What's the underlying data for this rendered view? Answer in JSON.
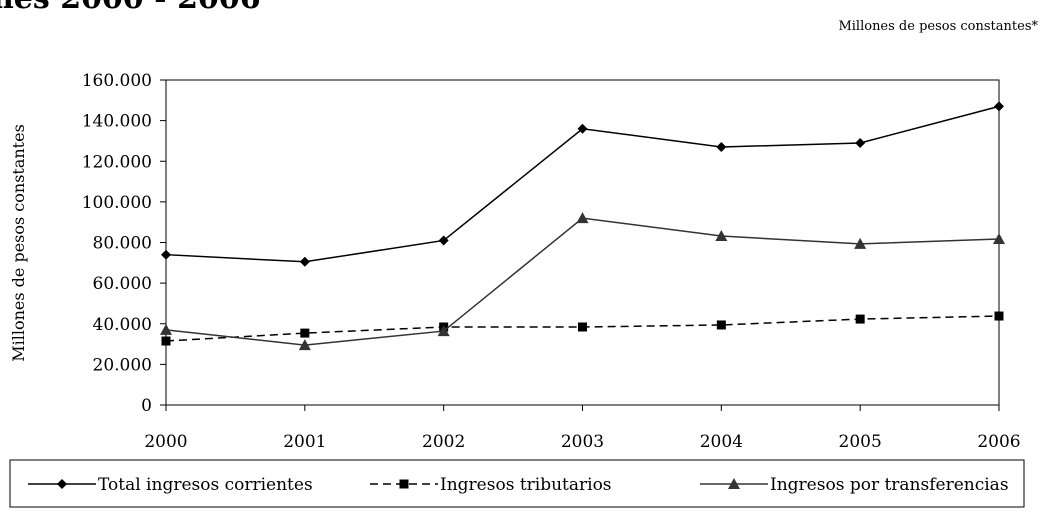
{
  "chart_data": {
    "type": "line",
    "title": "nes 2000 - 2006",
    "subtitle": "Millones de pesos constantes*",
    "y_label": "Millones de pesos constantes",
    "categories": [
      "2000",
      "2001",
      "2002",
      "2003",
      "2004",
      "2005",
      "2006"
    ],
    "series": [
      {
        "name": "Total ingresos corrientes",
        "color": "#000000",
        "marker": "diamond",
        "dash": "solid",
        "values": [
          74000,
          70500,
          81000,
          136000,
          127000,
          129000,
          147000
        ]
      },
      {
        "name": "Ingresos tributarios",
        "color": "#000000",
        "marker": "square",
        "dash": "dashed",
        "values": [
          31500,
          35400,
          38400,
          38400,
          39400,
          42300,
          43800
        ]
      },
      {
        "name": "Ingresos por transferencias",
        "color": "#333333",
        "marker": "triangle",
        "dash": "solid",
        "values": [
          37000,
          29500,
          36400,
          92000,
          83200,
          79300,
          81700
        ]
      }
    ],
    "ylim": [
      0,
      160000
    ],
    "yticks": [
      0,
      {
        "value": 20000,
        "label": "20.000"
      },
      {
        "value": 40000,
        "label": "40.000"
      },
      {
        "value": 60000,
        "label": "60.000"
      },
      {
        "value": 80000,
        "label": "80.000"
      },
      {
        "value": 100000,
        "label": "100.000"
      },
      {
        "value": 120000,
        "label": "120.000"
      },
      {
        "value": 140000,
        "label": "140.000"
      },
      {
        "value": 160000,
        "label": "160.000"
      }
    ],
    "grid": false,
    "legend": "bottom"
  }
}
